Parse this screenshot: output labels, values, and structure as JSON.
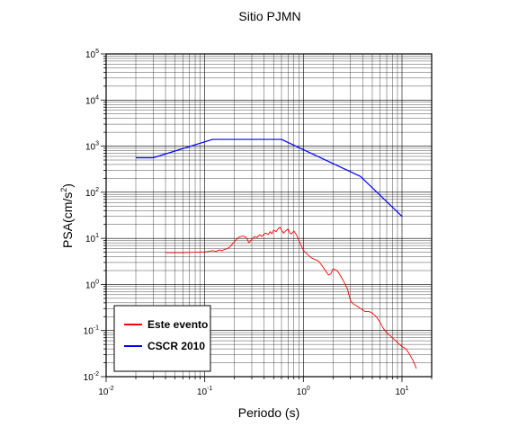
{
  "chart_data": {
    "type": "line",
    "title": "Sitio PJMN",
    "xlabel": "Periodo (s)",
    "ylabel_base": "PSA(cm/s",
    "ylabel_exp": "2",
    "ylabel_close": ")",
    "x_scale": "log",
    "y_scale": "log",
    "xlim": [
      0.01,
      20
    ],
    "ylim": [
      0.01,
      100000
    ],
    "grid": true,
    "x_ticks": [
      {
        "value": 0.01,
        "base": "10",
        "exp": "-2"
      },
      {
        "value": 0.1,
        "base": "10",
        "exp": "-1"
      },
      {
        "value": 1,
        "base": "10",
        "exp": "0"
      },
      {
        "value": 10,
        "base": "10",
        "exp": "1"
      }
    ],
    "y_ticks": [
      {
        "value": 0.01,
        "base": "10",
        "exp": "-2"
      },
      {
        "value": 0.1,
        "base": "10",
        "exp": "-1"
      },
      {
        "value": 1,
        "base": "10",
        "exp": "0"
      },
      {
        "value": 10,
        "base": "10",
        "exp": "1"
      },
      {
        "value": 100,
        "base": "10",
        "exp": "2"
      },
      {
        "value": 1000,
        "base": "10",
        "exp": "3"
      },
      {
        "value": 10000,
        "base": "10",
        "exp": "4"
      },
      {
        "value": 100000,
        "base": "10",
        "exp": "5"
      }
    ],
    "legend_position": "bottom-left",
    "series": [
      {
        "name": "Este evento",
        "color": "#ff0000",
        "points": [
          [
            0.04,
            4.9
          ],
          [
            0.06,
            4.9
          ],
          [
            0.08,
            5.0
          ],
          [
            0.1,
            5.1
          ],
          [
            0.11,
            5.2
          ],
          [
            0.12,
            5.4
          ],
          [
            0.13,
            5.2
          ],
          [
            0.14,
            5.6
          ],
          [
            0.15,
            5.4
          ],
          [
            0.16,
            5.8
          ],
          [
            0.17,
            6.0
          ],
          [
            0.18,
            6.5
          ],
          [
            0.19,
            7.5
          ],
          [
            0.2,
            8.5
          ],
          [
            0.21,
            9.5
          ],
          [
            0.22,
            10.5
          ],
          [
            0.24,
            11.2
          ],
          [
            0.26,
            10.8
          ],
          [
            0.27,
            9.5
          ],
          [
            0.28,
            8.0
          ],
          [
            0.3,
            9.5
          ],
          [
            0.32,
            11.0
          ],
          [
            0.34,
            10.5
          ],
          [
            0.36,
            12.0
          ],
          [
            0.38,
            11.0
          ],
          [
            0.4,
            12.5
          ],
          [
            0.42,
            13.0
          ],
          [
            0.44,
            12.0
          ],
          [
            0.46,
            14.0
          ],
          [
            0.48,
            12.5
          ],
          [
            0.5,
            15.0
          ],
          [
            0.53,
            14.0
          ],
          [
            0.56,
            16.5
          ],
          [
            0.58,
            17.5
          ],
          [
            0.6,
            15.0
          ],
          [
            0.63,
            13.0
          ],
          [
            0.66,
            14.5
          ],
          [
            0.7,
            16.0
          ],
          [
            0.73,
            13.0
          ],
          [
            0.76,
            12.5
          ],
          [
            0.8,
            14.5
          ],
          [
            0.85,
            12.0
          ],
          [
            0.9,
            9.0
          ],
          [
            0.95,
            7.0
          ],
          [
            1.0,
            5.5
          ],
          [
            1.1,
            4.5
          ],
          [
            1.2,
            3.8
          ],
          [
            1.3,
            3.5
          ],
          [
            1.4,
            3.3
          ],
          [
            1.5,
            2.8
          ],
          [
            1.6,
            2.3
          ],
          [
            1.7,
            1.9
          ],
          [
            1.8,
            1.6
          ],
          [
            1.9,
            1.7
          ],
          [
            2.0,
            2.2
          ],
          [
            2.2,
            2.0
          ],
          [
            2.4,
            1.5
          ],
          [
            2.6,
            1.1
          ],
          [
            2.8,
            0.8
          ],
          [
            3.0,
            0.45
          ],
          [
            3.2,
            0.38
          ],
          [
            3.5,
            0.34
          ],
          [
            3.8,
            0.3
          ],
          [
            4.2,
            0.26
          ],
          [
            4.6,
            0.26
          ],
          [
            5.0,
            0.24
          ],
          [
            5.5,
            0.2
          ],
          [
            6.0,
            0.15
          ],
          [
            6.5,
            0.11
          ],
          [
            7.0,
            0.09
          ],
          [
            8.0,
            0.07
          ],
          [
            9.0,
            0.055
          ],
          [
            10.0,
            0.045
          ],
          [
            11.0,
            0.04
          ],
          [
            12.0,
            0.03
          ],
          [
            13.0,
            0.022
          ],
          [
            14.0,
            0.015
          ]
        ]
      },
      {
        "name": "CSCR 2010",
        "color": "#0000ff",
        "points": [
          [
            0.02,
            560
          ],
          [
            0.03,
            560
          ],
          [
            0.12,
            1400
          ],
          [
            0.6,
            1400
          ],
          [
            3.8,
            220
          ],
          [
            10.0,
            30
          ]
        ]
      }
    ]
  }
}
